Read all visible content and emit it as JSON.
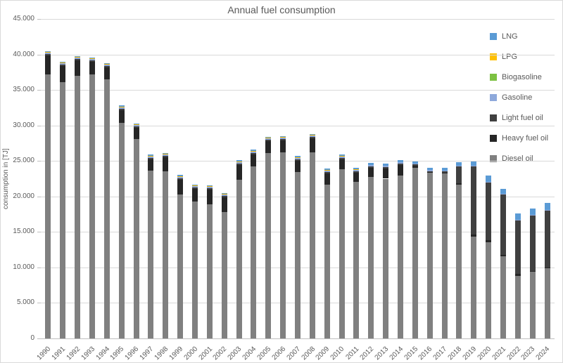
{
  "window": {
    "background_color": "#FFFFFF",
    "border_color": "#D9D9D9",
    "text_color": "#595959",
    "grid_color": "#D9D9D9",
    "axis_color": "#BFBFBF"
  },
  "chart_data": {
    "type": "bar",
    "stacked": true,
    "title": "Annual fuel consumption",
    "xlabel": "",
    "ylabel": "consumption in [TJ]",
    "ylim": [
      0,
      45000
    ],
    "ytick_step": 5000,
    "ytick_labels": [
      "0",
      "5.000",
      "10.000",
      "15.000",
      "20.000",
      "25.000",
      "30.000",
      "35.000",
      "40.000",
      "45.000"
    ],
    "grid": "horizontal",
    "legend_position": "right",
    "categories": [
      "1990",
      "1991",
      "1992",
      "1993",
      "1994",
      "1995",
      "1996",
      "1997",
      "1998",
      "1999",
      "2000",
      "2001",
      "2002",
      "2003",
      "2004",
      "2005",
      "2006",
      "2007",
      "2008",
      "2009",
      "2010",
      "2011",
      "2012",
      "2013",
      "2014",
      "2015",
      "2016",
      "2017",
      "2018",
      "2019",
      "2020",
      "2021",
      "2022",
      "2023",
      "2024"
    ],
    "series": [
      {
        "name": "LNG",
        "color": "#5B9BD5",
        "values": [
          150,
          150,
          150,
          150,
          150,
          150,
          150,
          150,
          150,
          150,
          150,
          150,
          150,
          150,
          150,
          150,
          150,
          150,
          150,
          150,
          150,
          200,
          250,
          250,
          250,
          250,
          300,
          350,
          450,
          600,
          800,
          750,
          900,
          900,
          1000
        ]
      },
      {
        "name": "LPG",
        "color": "#FFC000",
        "values": [
          50,
          50,
          50,
          50,
          50,
          50,
          50,
          50,
          50,
          50,
          50,
          50,
          50,
          50,
          50,
          50,
          50,
          100,
          100,
          100,
          100,
          50,
          0,
          0,
          0,
          0,
          0,
          0,
          0,
          0,
          0,
          0,
          0,
          0,
          0
        ]
      },
      {
        "name": "Biogasoline",
        "color": "#7DC142",
        "values": [
          0,
          0,
          0,
          0,
          0,
          0,
          0,
          0,
          0,
          0,
          0,
          0,
          0,
          0,
          0,
          0,
          0,
          0,
          0,
          0,
          0,
          0,
          0,
          0,
          0,
          0,
          0,
          0,
          0,
          0,
          0,
          0,
          0,
          0,
          0
        ]
      },
      {
        "name": "Gasoline",
        "color": "#8EA9DB",
        "values": [
          250,
          250,
          250,
          250,
          250,
          250,
          250,
          250,
          250,
          250,
          250,
          250,
          250,
          250,
          250,
          250,
          250,
          200,
          200,
          200,
          200,
          200,
          200,
          200,
          200,
          150,
          150,
          150,
          100,
          50,
          50,
          50,
          50,
          50,
          50
        ]
      },
      {
        "name": "Light fuel oil",
        "color": "#404040",
        "values": [
          200,
          200,
          200,
          200,
          200,
          200,
          200,
          200,
          200,
          200,
          200,
          200,
          200,
          200,
          200,
          200,
          200,
          200,
          200,
          200,
          200,
          200,
          200,
          200,
          200,
          150,
          100,
          150,
          2400,
          9600,
          8200,
          8500,
          7600,
          7850,
          8050
        ]
      },
      {
        "name": "Heavy fuel oil",
        "color": "#262626",
        "values": [
          2700,
          2250,
          2150,
          1750,
          1650,
          1750,
          1550,
          1650,
          1950,
          2050,
          1750,
          2050,
          2050,
          2050,
          1750,
          1650,
          1650,
          1650,
          1950,
          1550,
          1450,
          1250,
          1350,
          1450,
          1550,
          350,
          50,
          150,
          150,
          350,
          300,
          250,
          200,
          150,
          150
        ]
      },
      {
        "name": "Diesel oil",
        "color": "#808080",
        "values": [
          37150,
          36100,
          37000,
          37200,
          36500,
          30400,
          28100,
          23600,
          23550,
          20300,
          19300,
          18900,
          17800,
          22400,
          24200,
          26100,
          26200,
          23400,
          26200,
          21700,
          23800,
          22100,
          22700,
          22500,
          22900,
          24000,
          23400,
          23200,
          21700,
          14300,
          13550,
          11550,
          8850,
          9350,
          9850
        ]
      }
    ],
    "totals": [
      40500,
      39000,
      39800,
      39600,
      38800,
      32800,
      30300,
      25900,
      26100,
      23000,
      21700,
      21600,
      20500,
      25100,
      26600,
      28400,
      28500,
      25700,
      28800,
      23900,
      25900,
      24000,
      24700,
      24600,
      25100,
      24900,
      24000,
      24000,
      24800,
      24900,
      22900,
      21100,
      17600,
      18300,
      19100
    ]
  }
}
